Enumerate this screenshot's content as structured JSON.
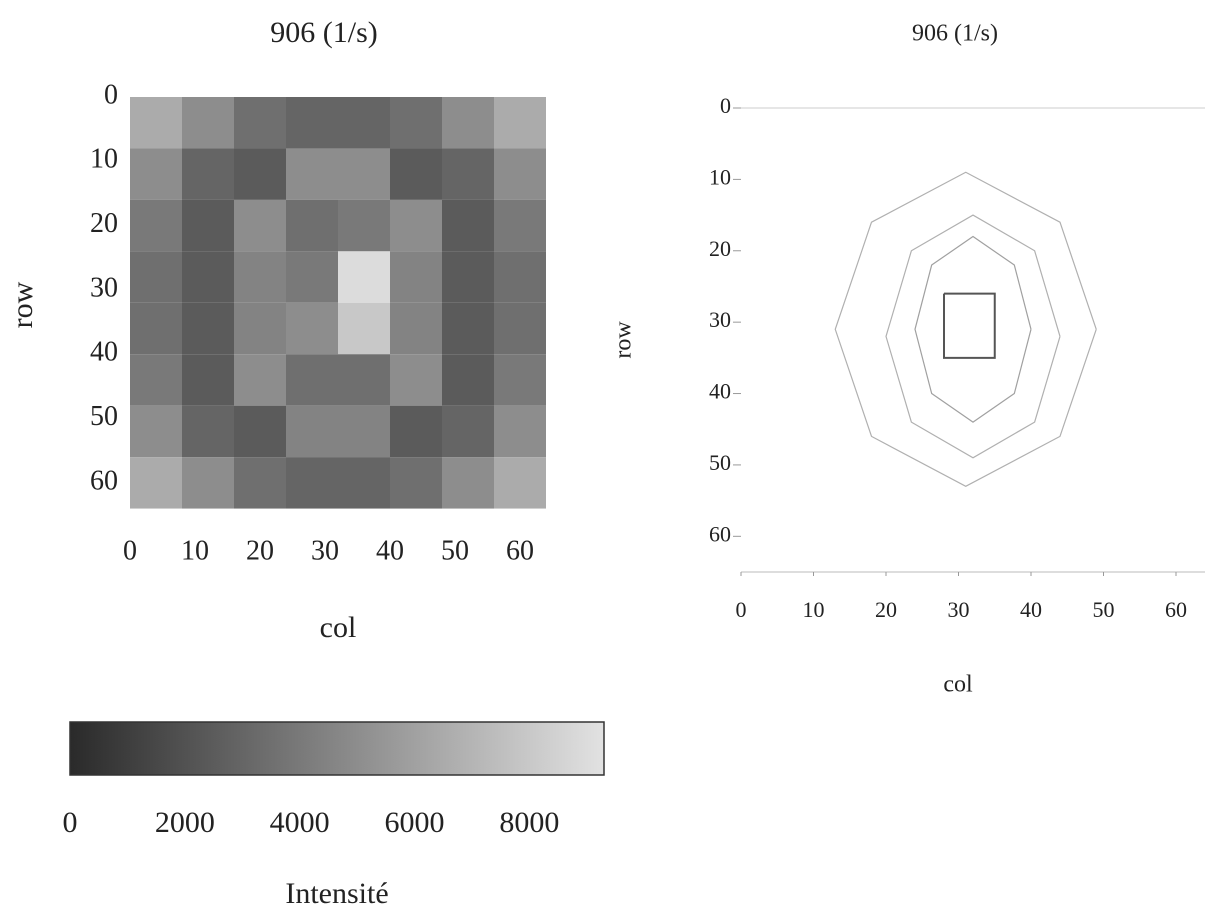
{
  "chart_data": [
    {
      "type": "heatmap",
      "title": "906 (1/s)",
      "xlabel": "col",
      "ylabel": "row",
      "xlim": [
        0,
        64
      ],
      "ylim": [
        0,
        65
      ],
      "y_inverted": true,
      "xticks": [
        0,
        10,
        20,
        30,
        40,
        50,
        60
      ],
      "yticks": [
        0,
        10,
        20,
        30,
        40,
        50,
        60
      ],
      "x_edges": [
        0,
        8,
        16,
        24,
        32,
        40,
        48,
        56,
        64
      ],
      "y_edges": [
        0,
        8,
        16,
        24,
        32,
        40,
        48,
        56,
        64
      ],
      "z": [
        [
          6500,
          5000,
          3500,
          3000,
          3000,
          3500,
          5000,
          6500
        ],
        [
          5000,
          3000,
          2500,
          5000,
          5000,
          2500,
          3000,
          5000
        ],
        [
          4000,
          2500,
          5000,
          3500,
          4000,
          5000,
          2500,
          4000
        ],
        [
          3500,
          2500,
          4500,
          4000,
          9000,
          4500,
          2500,
          3500
        ],
        [
          3500,
          2500,
          4500,
          5000,
          8000,
          4500,
          2500,
          3500
        ],
        [
          4000,
          2500,
          5000,
          3500,
          3500,
          5000,
          2500,
          4000
        ],
        [
          5000,
          3000,
          2500,
          4500,
          4500,
          2500,
          3000,
          5000
        ],
        [
          6500,
          5000,
          3500,
          3000,
          3000,
          3500,
          5000,
          6500
        ]
      ],
      "colorbar": {
        "label": "Intensité",
        "lim": [
          0,
          9300
        ],
        "ticks": [
          0,
          2000,
          4000,
          6000,
          8000
        ]
      }
    },
    {
      "type": "contour",
      "title": "906 (1/s)",
      "xlabel": "col",
      "ylabel": "row",
      "xlim": [
        0,
        64
      ],
      "ylim": [
        0,
        65
      ],
      "y_inverted": true,
      "xticks": [
        0,
        10,
        20,
        30,
        40,
        50,
        60
      ],
      "yticks": [
        0,
        10,
        20,
        30,
        40,
        50,
        60
      ],
      "series": [
        {
          "color": "#b0b0b0",
          "x": [
            49,
            44,
            31,
            18,
            13,
            18,
            31,
            44,
            49
          ],
          "y": [
            31,
            46,
            53,
            46,
            31,
            16,
            9,
            16,
            31
          ]
        },
        {
          "color": "#b0b0b0",
          "x": [
            44,
            40.5,
            32,
            23.5,
            20,
            23.5,
            32,
            40.5,
            44
          ],
          "y": [
            32,
            44,
            49,
            44,
            32,
            20,
            15,
            20,
            32
          ]
        },
        {
          "color": "#a0a0a0",
          "x": [
            40,
            37.7,
            32,
            26.3,
            24,
            26.3,
            32,
            37.7,
            40
          ],
          "y": [
            31,
            40,
            44,
            40,
            31,
            22,
            18,
            22,
            31
          ]
        },
        {
          "color": "#555555",
          "x": [
            28,
            35,
            35,
            28,
            28
          ],
          "y": [
            26,
            26,
            35,
            35,
            26
          ]
        }
      ]
    }
  ]
}
